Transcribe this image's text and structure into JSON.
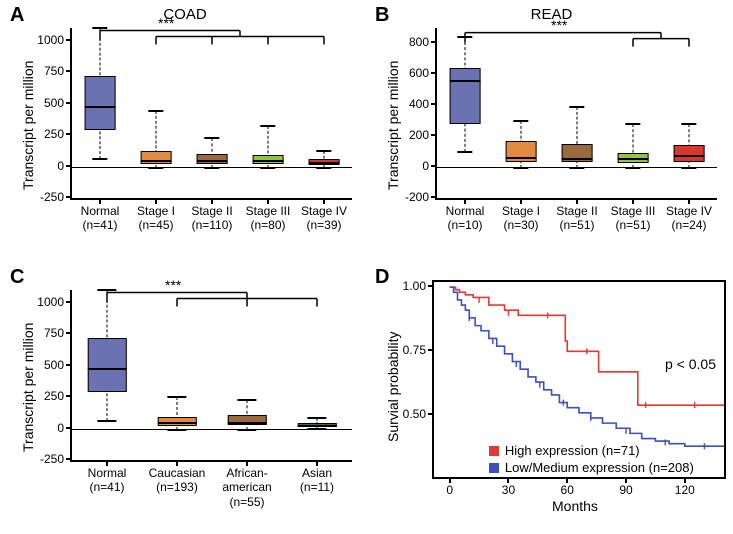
{
  "font_family": "Arial, Helvetica, sans-serif",
  "label_fontsize": 14,
  "tick_fontsize": 12,
  "panel_label_fontsize": 20,
  "title_fontsize": 15,
  "axis_color": "#000000",
  "background_color": "#ffffff",
  "panels": {
    "A": {
      "label": "A",
      "title": "COAD",
      "type": "boxplot",
      "ylabel": "Transcript per million",
      "ylim": [
        -250,
        1100
      ],
      "yticks": [
        -250,
        0,
        250,
        500,
        750,
        1000
      ],
      "categories": [
        {
          "top": "Normal",
          "bottom": "(n=41)"
        },
        {
          "top": "Stage I",
          "bottom": "(n=45)"
        },
        {
          "top": "Stage II",
          "bottom": "(n=110)"
        },
        {
          "top": "Stage III",
          "bottom": "(n=80)"
        },
        {
          "top": "Stage IV",
          "bottom": "(n=39)"
        }
      ],
      "boxes": [
        {
          "min": 60,
          "q1": 290,
          "median": 470,
          "q3": 720,
          "max": 1100,
          "fill": "#6b72b2"
        },
        {
          "min": -10,
          "q1": 20,
          "median": 45,
          "q3": 120,
          "max": 440,
          "fill": "#e28a42"
        },
        {
          "min": -10,
          "q1": 20,
          "median": 40,
          "q3": 100,
          "max": 230,
          "fill": "#9b6a3c"
        },
        {
          "min": -10,
          "q1": 20,
          "median": 40,
          "q3": 95,
          "max": 320,
          "fill": "#8fc540"
        },
        {
          "min": -10,
          "q1": 15,
          "median": 30,
          "q3": 60,
          "max": 120,
          "fill": "#d6382f"
        }
      ],
      "box_width": 0.55,
      "sig": {
        "from": 0,
        "to": [
          1,
          2,
          3,
          4
        ],
        "label": "***",
        "y": 1080
      }
    },
    "B": {
      "label": "B",
      "title": "READ",
      "type": "boxplot",
      "ylabel": "Transcript per million",
      "ylim": [
        -200,
        900
      ],
      "yticks": [
        -200,
        0,
        200,
        400,
        600,
        800
      ],
      "categories": [
        {
          "top": "Normal",
          "bottom": "(n=10)"
        },
        {
          "top": "Stage I",
          "bottom": "(n=30)"
        },
        {
          "top": "Stage II",
          "bottom": "(n=51)"
        },
        {
          "top": "Stage III",
          "bottom": "(n=51)"
        },
        {
          "top": "Stage IV",
          "bottom": "(n=24)"
        }
      ],
      "boxes": [
        {
          "min": 100,
          "q1": 280,
          "median": 560,
          "q3": 640,
          "max": 840,
          "fill": "#6b72b2"
        },
        {
          "min": -5,
          "q1": 30,
          "median": 60,
          "q3": 170,
          "max": 300,
          "fill": "#e28a42"
        },
        {
          "min": -5,
          "q1": 30,
          "median": 55,
          "q3": 150,
          "max": 390,
          "fill": "#9b6a3c"
        },
        {
          "min": -5,
          "q1": 25,
          "median": 50,
          "q3": 90,
          "max": 280,
          "fill": "#8fc540"
        },
        {
          "min": -5,
          "q1": 35,
          "median": 70,
          "q3": 140,
          "max": 280,
          "fill": "#d6382f"
        }
      ],
      "box_width": 0.55,
      "sig": {
        "from": 0,
        "to": [
          3,
          4
        ],
        "label": "***",
        "y": 870
      }
    },
    "C": {
      "label": "C",
      "title": "",
      "type": "boxplot",
      "ylabel": "Transcript per million",
      "ylim": [
        -250,
        1100
      ],
      "yticks": [
        -250,
        0,
        250,
        500,
        750,
        1000
      ],
      "categories": [
        {
          "top": "Normal",
          "bottom": "(n=41)"
        },
        {
          "top": "Caucasian",
          "bottom": "(n=193)"
        },
        {
          "top": "African-",
          "mid": "american",
          "bottom": "(n=55)"
        },
        {
          "top": "Asian",
          "bottom": "(n=11)"
        }
      ],
      "boxes": [
        {
          "min": 60,
          "q1": 290,
          "median": 470,
          "q3": 720,
          "max": 1100,
          "fill": "#6b72b2"
        },
        {
          "min": -10,
          "q1": 20,
          "median": 40,
          "q3": 95,
          "max": 250,
          "fill": "#e28a42"
        },
        {
          "min": -10,
          "q1": 25,
          "median": 45,
          "q3": 110,
          "max": 230,
          "fill": "#9b6a3c"
        },
        {
          "min": -5,
          "q1": 10,
          "median": 20,
          "q3": 40,
          "max": 80,
          "fill": "#4a6b2a"
        }
      ],
      "box_width": 0.55,
      "sig": {
        "from": 0,
        "to": [
          1,
          2,
          3
        ],
        "label": "***",
        "y": 1080
      }
    },
    "D": {
      "label": "D",
      "type": "survival",
      "ylabel": "Survial probability",
      "xlabel": "Months",
      "xlim": [
        -8,
        140
      ],
      "ylim": [
        0.26,
        1.02
      ],
      "xticks": [
        0,
        30,
        60,
        90,
        120
      ],
      "yticks": [
        0.5,
        0.75,
        1.0
      ],
      "p_text": "p < 0.05",
      "legend": [
        {
          "label": "High expression (n=71)",
          "color": "#e03a32"
        },
        {
          "label": "Low/Medium expression (n=208)",
          "color": "#3b4fbf"
        }
      ],
      "curves": {
        "high": {
          "color": "#e03a32",
          "points": [
            [
              0,
              1.0
            ],
            [
              3,
              0.99
            ],
            [
              5,
              0.98
            ],
            [
              8,
              0.97
            ],
            [
              12,
              0.96
            ],
            [
              20,
              0.93
            ],
            [
              28,
              0.91
            ],
            [
              35,
              0.89
            ],
            [
              36,
              0.89
            ],
            [
              58,
              0.89
            ],
            [
              59,
              0.79
            ],
            [
              60,
              0.75
            ],
            [
              75,
              0.75
            ],
            [
              76,
              0.67
            ],
            [
              95,
              0.67
            ],
            [
              96,
              0.54
            ],
            [
              140,
              0.54
            ]
          ],
          "censor_marks": [
            [
              15,
              0.95
            ],
            [
              30,
              0.9
            ],
            [
              50,
              0.89
            ],
            [
              70,
              0.75
            ],
            [
              100,
              0.54
            ],
            [
              125,
              0.54
            ]
          ]
        },
        "low": {
          "color": "#3b4fbf",
          "points": [
            [
              0,
              1.0
            ],
            [
              2,
              0.98
            ],
            [
              4,
              0.95
            ],
            [
              6,
              0.93
            ],
            [
              8,
              0.91
            ],
            [
              10,
              0.88
            ],
            [
              13,
              0.85
            ],
            [
              16,
              0.83
            ],
            [
              20,
              0.8
            ],
            [
              24,
              0.77
            ],
            [
              28,
              0.74
            ],
            [
              32,
              0.71
            ],
            [
              36,
              0.68
            ],
            [
              40,
              0.65
            ],
            [
              44,
              0.63
            ],
            [
              48,
              0.6
            ],
            [
              52,
              0.58
            ],
            [
              56,
              0.55
            ],
            [
              60,
              0.53
            ],
            [
              66,
              0.51
            ],
            [
              72,
              0.49
            ],
            [
              78,
              0.47
            ],
            [
              85,
              0.45
            ],
            [
              92,
              0.43
            ],
            [
              98,
              0.41
            ],
            [
              105,
              0.4
            ],
            [
              112,
              0.39
            ],
            [
              120,
              0.38
            ],
            [
              140,
              0.38
            ]
          ],
          "censor_marks": [
            [
              10,
              0.88
            ],
            [
              22,
              0.79
            ],
            [
              34,
              0.7
            ],
            [
              46,
              0.62
            ],
            [
              58,
              0.55
            ],
            [
              72,
              0.49
            ],
            [
              90,
              0.44
            ],
            [
              110,
              0.395
            ],
            [
              130,
              0.38
            ]
          ]
        }
      }
    }
  }
}
